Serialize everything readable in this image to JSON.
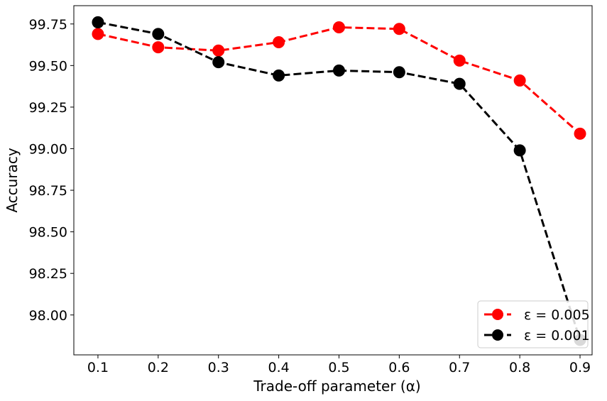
{
  "chart_data": {
    "type": "line",
    "title": "",
    "xlabel": "Trade-off parameter (α)",
    "ylabel": "Accuracy",
    "x": [
      0.1,
      0.2,
      0.3,
      0.4,
      0.5,
      0.6,
      0.7,
      0.8,
      0.9
    ],
    "xticks": [
      "0.1",
      "0.2",
      "0.3",
      "0.4",
      "0.5",
      "0.6",
      "0.7",
      "0.8",
      "0.9"
    ],
    "yticks": [
      "98.00",
      "98.25",
      "98.50",
      "98.75",
      "99.00",
      "99.25",
      "99.50",
      "99.75"
    ],
    "xlim": [
      0.06,
      0.92
    ],
    "ylim": [
      97.76,
      99.86
    ],
    "grid": false,
    "legend_position": "bottom-right",
    "series": [
      {
        "name": "ε = 0.005",
        "color": "#ff0000",
        "values": [
          99.69,
          99.61,
          99.59,
          99.64,
          99.73,
          99.72,
          99.53,
          99.41,
          99.09
        ]
      },
      {
        "name": "ε = 0.001",
        "color": "#000000",
        "values": [
          99.76,
          99.69,
          99.52,
          99.44,
          99.47,
          99.46,
          99.39,
          98.99,
          97.85
        ]
      }
    ]
  }
}
